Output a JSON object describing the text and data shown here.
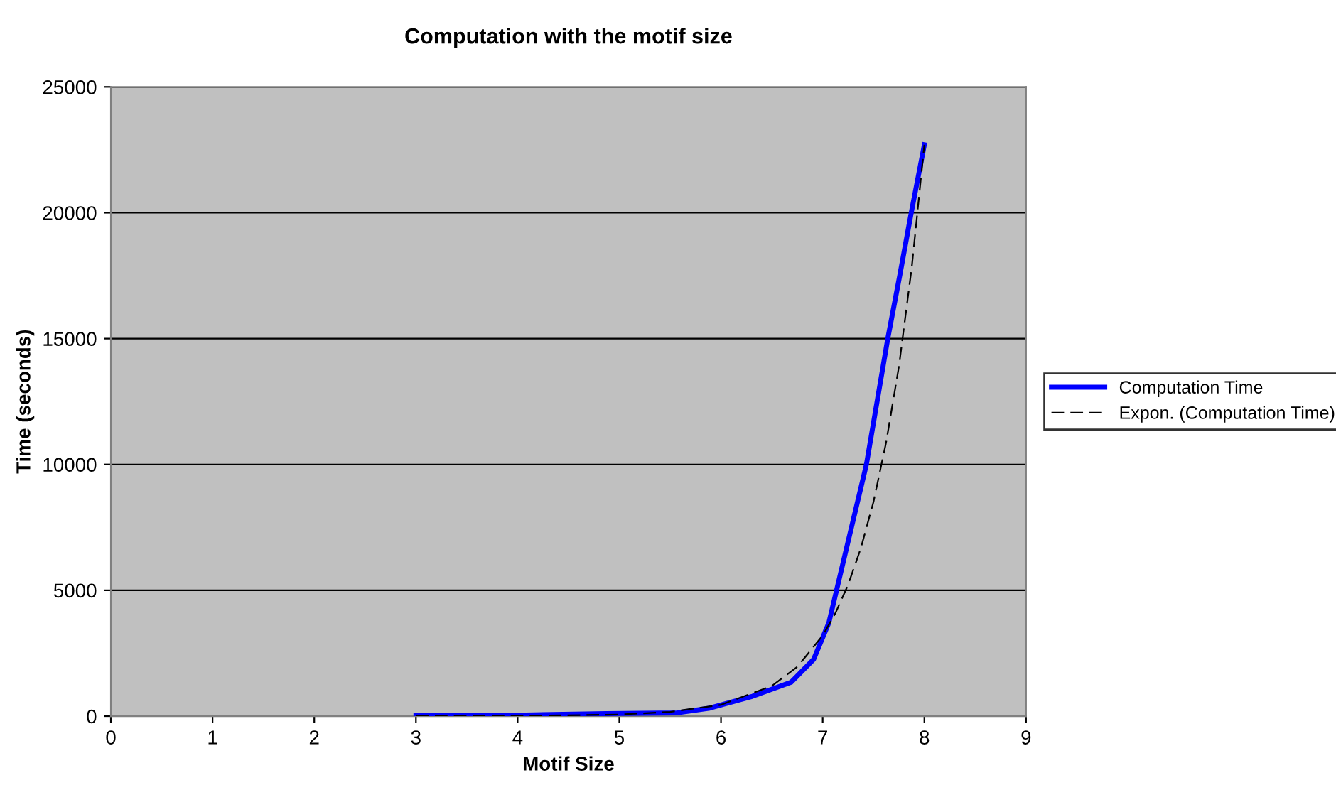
{
  "chart_data": {
    "type": "line",
    "title": "Computation with the motif size",
    "xlabel": "Motif Size",
    "ylabel": "Time (seconds)",
    "series": [
      {
        "name": "Computation Time",
        "color": "#0000ff",
        "line_style": "solid",
        "x": [
          3,
          4,
          4.87,
          5.57,
          5.89,
          6.31,
          6.69,
          6.91,
          7.06,
          7.22,
          7.43,
          7.64,
          7.76,
          7.87,
          8
        ],
        "values": [
          30,
          40,
          100,
          130,
          320,
          790,
          1350,
          2250,
          3700,
          6430,
          10000,
          15000,
          17550,
          19980,
          22700
        ]
      },
      {
        "name": "Expon. (Computation Time)",
        "color": "#000000",
        "line_style": "dashed",
        "x": [
          3,
          4,
          5,
          5.5,
          6,
          6.5,
          6.75,
          7,
          7.125,
          7.25,
          7.375,
          7.5,
          7.625,
          7.75,
          7.875,
          8
        ],
        "values": [
          1,
          9,
          63,
          169,
          450,
          1200,
          1960,
          3200,
          4090,
          5220,
          6670,
          8520,
          10900,
          13900,
          17800,
          22700
        ]
      }
    ],
    "xlim": [
      0,
      9
    ],
    "xticks": [
      0,
      1,
      2,
      3,
      4,
      5,
      6,
      7,
      8,
      9
    ],
    "ylim": [
      0,
      25000
    ],
    "yticks": [
      0,
      5000,
      10000,
      15000,
      20000,
      25000
    ],
    "grid": "y",
    "legend": "right",
    "marker": "none"
  }
}
